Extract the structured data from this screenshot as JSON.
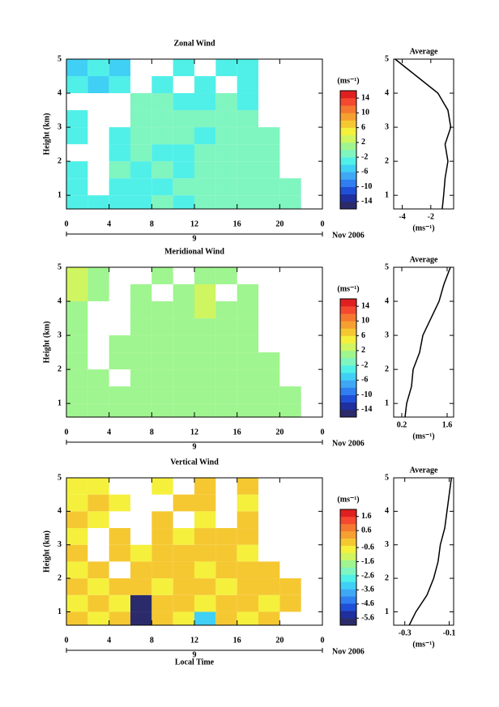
{
  "colormap": [
    "#2b2b6b",
    "#1f2f9e",
    "#1f4fd6",
    "#2f7ff0",
    "#3fa8f5",
    "#40d0f5",
    "#50f0e8",
    "#7ff5c0",
    "#9ff58f",
    "#cff560",
    "#f5f03c",
    "#f5c832",
    "#f5a030",
    "#f57830",
    "#f54830",
    "#e02020"
  ],
  "chart_data": [
    {
      "type": "heatmap",
      "title": "Zonal Wind",
      "ylabel": "Height (km)",
      "xlim": [
        0,
        24
      ],
      "xticks": [
        0,
        4,
        8,
        12,
        16,
        20,
        {
          "value": 24,
          "label": "0"
        }
      ],
      "ylim": [
        0.6,
        5
      ],
      "yticks": [
        1,
        2,
        3,
        4,
        5
      ],
      "xbins": [
        0,
        2,
        4,
        6,
        8,
        10,
        12,
        14,
        16,
        18,
        20,
        22
      ],
      "ybins": [
        0.6,
        1,
        1.5,
        2,
        2.5,
        3,
        3.5,
        4,
        4.5,
        5
      ],
      "values": [
        [
          -3,
          -3,
          -3,
          -3,
          -2,
          -3,
          -2,
          -2,
          -1,
          -2,
          -1
        ],
        [
          -3,
          null,
          -3,
          -3,
          -3,
          -2,
          -2,
          -2,
          -1,
          -1,
          -2
        ],
        [
          -3,
          null,
          -2,
          -3,
          -2,
          -3,
          -2,
          -1,
          -1,
          -1,
          null
        ],
        [
          null,
          null,
          -3,
          -2,
          -3,
          -3,
          -2,
          -1,
          -1,
          -1,
          null
        ],
        [
          -3,
          null,
          -3,
          -2,
          -2,
          -2,
          -3,
          -2,
          -1,
          -1,
          null
        ],
        [
          -3,
          null,
          null,
          -2,
          -2,
          -2,
          -2,
          -2,
          -2,
          null,
          null
        ],
        [
          null,
          null,
          null,
          -2,
          -2,
          -3,
          -3,
          -2,
          -3,
          null,
          null
        ],
        [
          -4,
          -5,
          -4,
          null,
          -3,
          null,
          -3,
          null,
          -4,
          null,
          null
        ],
        [
          -5,
          -4,
          -5,
          null,
          null,
          -4,
          null,
          -3,
          -4,
          null,
          null
        ]
      ],
      "date_categories": [
        "9"
      ],
      "date_label": "Nov 2006",
      "colorbar_label": "(ms⁻¹)",
      "clim": [
        -16,
        16
      ],
      "cticks": [
        -14,
        -10,
        -6,
        -2,
        2,
        6,
        10,
        14
      ]
    },
    {
      "type": "line",
      "title": "Average",
      "xlabel": "(ms⁻¹)",
      "color": "#000000",
      "y": [
        0.6,
        1,
        1.5,
        2,
        2.5,
        3,
        3.5,
        4,
        4.5,
        5
      ],
      "values": [
        -1.2,
        -1.1,
        -1,
        -0.8,
        -1,
        -0.6,
        -0.8,
        -1.5,
        -3,
        -4.5
      ],
      "xlim": [
        -4.6,
        -0.4
      ],
      "xticks": [
        -4,
        -2
      ],
      "ylim": [
        0.6,
        5
      ],
      "yticks": [
        1,
        2,
        3,
        4,
        5
      ]
    },
    {
      "type": "heatmap",
      "title": "Meridional Wind",
      "ylabel": "Height (km)",
      "xlim": [
        0,
        24
      ],
      "xticks": [
        0,
        4,
        8,
        12,
        16,
        20,
        {
          "value": 24,
          "label": "0"
        }
      ],
      "ylim": [
        0.6,
        5
      ],
      "yticks": [
        1,
        2,
        3,
        4,
        5
      ],
      "xbins": [
        0,
        2,
        4,
        6,
        8,
        10,
        12,
        14,
        16,
        18,
        20,
        22
      ],
      "ybins": [
        0.6,
        1,
        1.5,
        2,
        2.5,
        3,
        3.5,
        4,
        4.5,
        5
      ],
      "values": [
        [
          0,
          1,
          0,
          1,
          0,
          1,
          1,
          0,
          1,
          0,
          0
        ],
        [
          1,
          0,
          1,
          0,
          1,
          0,
          1,
          1,
          0,
          1,
          0
        ],
        [
          0,
          1,
          null,
          1,
          1,
          0,
          1,
          1,
          0,
          0,
          null
        ],
        [
          1,
          null,
          1,
          1,
          0,
          1,
          0,
          1,
          1,
          0,
          null
        ],
        [
          0,
          null,
          1,
          0,
          1,
          1,
          1,
          0,
          1,
          null,
          null
        ],
        [
          1,
          null,
          null,
          1,
          1,
          0,
          1,
          1,
          0,
          null,
          null
        ],
        [
          1,
          null,
          null,
          0,
          1,
          1,
          3,
          1,
          0,
          null,
          null
        ],
        [
          2,
          1,
          null,
          1,
          null,
          1,
          3,
          null,
          1,
          null,
          null
        ],
        [
          2,
          1,
          null,
          null,
          1,
          null,
          1,
          0,
          null,
          null,
          null
        ]
      ],
      "date_categories": [
        "9"
      ],
      "date_label": "Nov 2006",
      "colorbar_label": "(ms⁻¹)",
      "clim": [
        -16,
        16
      ],
      "cticks": [
        -14,
        -10,
        -6,
        -2,
        2,
        6,
        10,
        14
      ]
    },
    {
      "type": "line",
      "title": "Average",
      "xlabel": "(ms⁻¹)",
      "color": "#000000",
      "y": [
        0.6,
        1,
        1.5,
        2,
        2.5,
        3,
        3.5,
        4,
        4.5,
        5
      ],
      "values": [
        0.3,
        0.35,
        0.5,
        0.55,
        0.75,
        0.85,
        1.1,
        1.35,
        1.5,
        1.7
      ],
      "xlim": [
        -0.05,
        1.8
      ],
      "xticks": [
        0.2,
        1.6
      ],
      "ylim": [
        0.6,
        5
      ],
      "yticks": [
        1,
        2,
        3,
        4,
        5
      ]
    },
    {
      "type": "heatmap",
      "title": "Vertical Wind",
      "ylabel": "Height (km)",
      "xlabel": "Local Time",
      "xlim": [
        0,
        24
      ],
      "xticks": [
        0,
        4,
        8,
        12,
        16,
        20,
        {
          "value": 24,
          "label": "0"
        }
      ],
      "ylim": [
        0.6,
        5
      ],
      "yticks": [
        1,
        2,
        3,
        4,
        5
      ],
      "xbins": [
        0,
        2,
        4,
        6,
        8,
        10,
        12,
        14,
        16,
        18,
        20,
        22
      ],
      "ybins": [
        0.6,
        1,
        1.5,
        2,
        2.5,
        3,
        3.5,
        4,
        4.5,
        5
      ],
      "values": [
        [
          -0.2,
          -0.7,
          -0.2,
          -5.8,
          -0.2,
          -0.7,
          -3.2,
          -0.2,
          -0.7,
          -0.2,
          null
        ],
        [
          -0.7,
          -0.2,
          -0.7,
          -5.8,
          -0.2,
          -0.2,
          -0.7,
          -0.2,
          -0.2,
          -0.7,
          -0.2
        ],
        [
          -0.2,
          -0.7,
          -0.2,
          -0.2,
          -0.7,
          -0.2,
          -0.2,
          -0.7,
          -0.2,
          -0.2,
          -0.2
        ],
        [
          -0.7,
          -0.2,
          null,
          -0.2,
          -0.2,
          -0.2,
          -0.7,
          -0.2,
          -0.2,
          -0.2,
          null
        ],
        [
          -0.2,
          null,
          -0.2,
          -0.7,
          -0.2,
          -0.2,
          -0.2,
          -0.2,
          -0.7,
          null,
          null
        ],
        [
          -0.7,
          null,
          -0.2,
          null,
          -0.2,
          -0.7,
          -0.2,
          -0.2,
          -0.2,
          null,
          null
        ],
        [
          -0.2,
          -0.7,
          null,
          null,
          -0.2,
          null,
          -0.7,
          null,
          -0.2,
          null,
          null
        ],
        [
          -0.7,
          -0.2,
          -0.7,
          null,
          null,
          -0.2,
          -0.2,
          null,
          -0.7,
          null,
          null
        ],
        [
          -0.7,
          -0.7,
          null,
          null,
          -0.7,
          null,
          -0.2,
          null,
          -0.2,
          null,
          null
        ]
      ],
      "date_categories": [
        "9"
      ],
      "date_label": "Nov 2006",
      "colorbar_label": "(ms⁻¹)",
      "clim": [
        -6.1,
        2.1
      ],
      "cticks": [
        -5.6,
        -4.6,
        -3.6,
        -2.6,
        -1.6,
        -0.6,
        0.6,
        1.6
      ]
    },
    {
      "type": "line",
      "title": "Average",
      "xlabel": "(ms⁻¹)",
      "color": "#000000",
      "y": [
        0.6,
        1,
        1.5,
        2,
        2.5,
        3,
        3.5,
        4,
        4.5,
        5
      ],
      "values": [
        -0.28,
        -0.25,
        -0.2,
        -0.17,
        -0.15,
        -0.14,
        -0.12,
        -0.11,
        -0.1,
        -0.09
      ],
      "xlim": [
        -0.35,
        -0.08
      ],
      "xticks": [
        -0.3,
        -0.1
      ],
      "ylim": [
        0.6,
        5
      ],
      "yticks": [
        1,
        2,
        3,
        4,
        5
      ]
    }
  ]
}
